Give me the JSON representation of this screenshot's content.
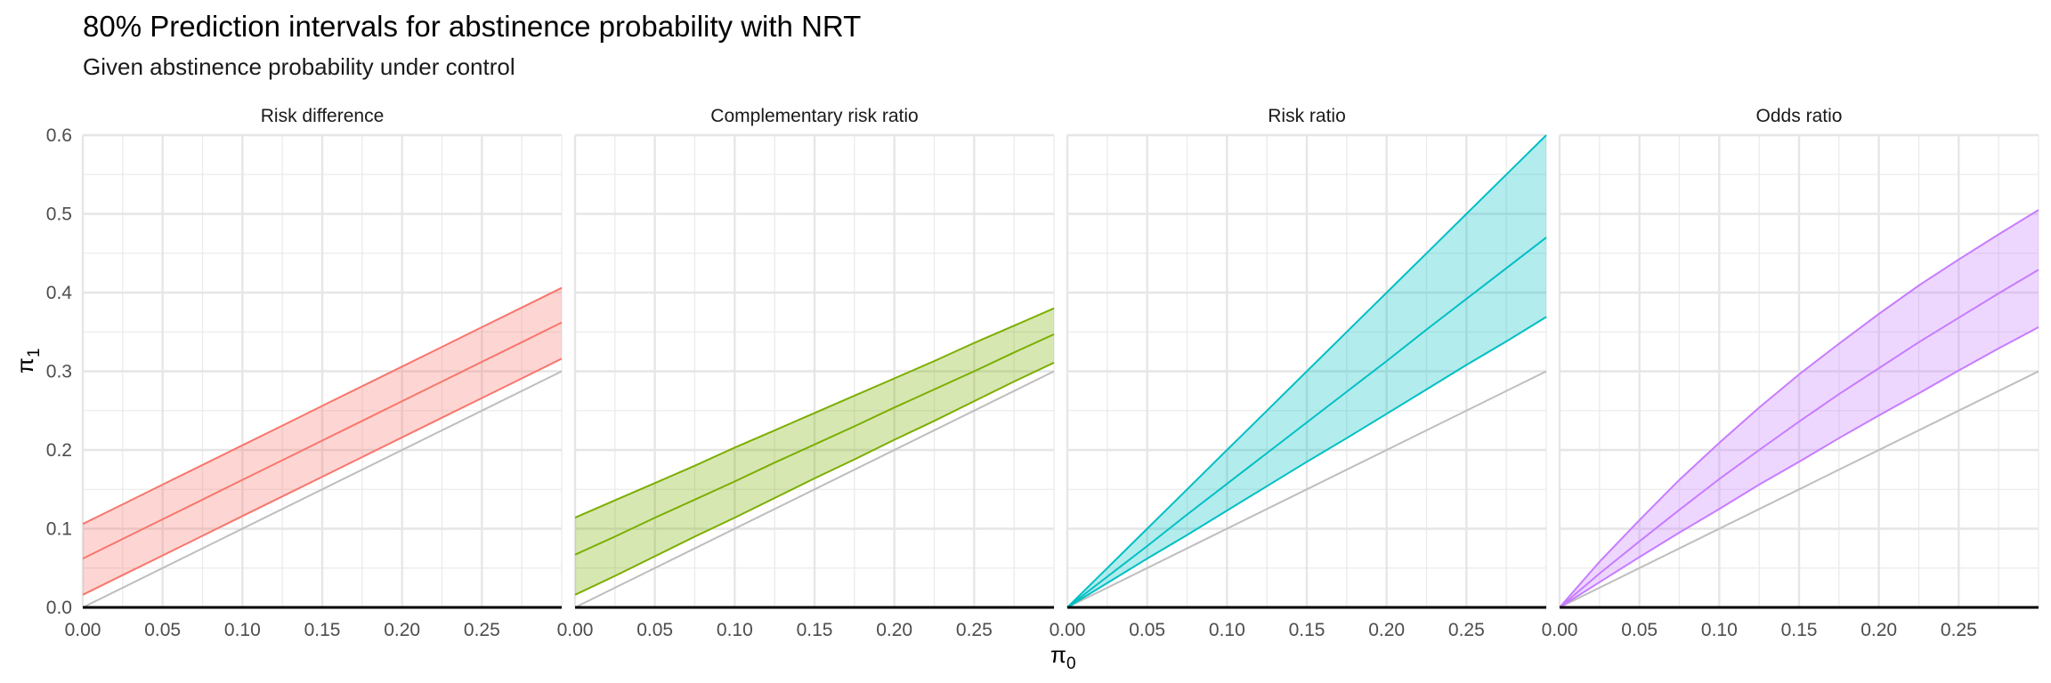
{
  "chart_data": {
    "type": "area",
    "title": "80% Prediction intervals for abstinence probability with NRT",
    "subtitle": "Given abstinence probability under control",
    "xlabel": "π",
    "xlabel_subscript": "0",
    "ylabel": "π",
    "ylabel_subscript": "1",
    "xlim": [
      0,
      0.3
    ],
    "ylim": [
      0,
      0.6
    ],
    "x_ticks": [
      "0.00",
      "0.05",
      "0.10",
      "0.15",
      "0.20",
      "0.25"
    ],
    "x_tick_values": [
      0,
      0.05,
      0.1,
      0.15,
      0.2,
      0.25
    ],
    "y_ticks": [
      "0.0",
      "0.1",
      "0.2",
      "0.3",
      "0.4",
      "0.5",
      "0.6"
    ],
    "y_tick_values": [
      0,
      0.1,
      0.2,
      0.3,
      0.4,
      0.5,
      0.6
    ],
    "grid": true,
    "reference_line": {
      "name": "identity (π1 = π0)",
      "color": "#bebebe"
    },
    "x": [
      0,
      0.025,
      0.05,
      0.075,
      0.1,
      0.125,
      0.15,
      0.175,
      0.2,
      0.225,
      0.25,
      0.275,
      0.3
    ],
    "panels": [
      {
        "label": "Risk difference",
        "color": "#f8766d",
        "fill": "#fdd0cd",
        "lower": [
          0.016,
          0.041,
          0.066,
          0.091,
          0.116,
          0.141,
          0.166,
          0.191,
          0.216,
          0.241,
          0.266,
          0.291,
          0.316
        ],
        "median": [
          0.062,
          0.087,
          0.112,
          0.137,
          0.162,
          0.187,
          0.212,
          0.237,
          0.262,
          0.287,
          0.312,
          0.337,
          0.362
        ],
        "upper": [
          0.106,
          0.131,
          0.156,
          0.181,
          0.206,
          0.231,
          0.256,
          0.281,
          0.306,
          0.331,
          0.356,
          0.381,
          0.406
        ]
      },
      {
        "label": "Complementary risk ratio",
        "color": "#7cae00",
        "fill": "#d7e7b3",
        "lower": [
          0.016,
          0.04,
          0.065,
          0.09,
          0.114,
          0.139,
          0.164,
          0.188,
          0.213,
          0.237,
          0.262,
          0.287,
          0.311
        ],
        "median": [
          0.067,
          0.09,
          0.114,
          0.137,
          0.16,
          0.184,
          0.207,
          0.23,
          0.254,
          0.277,
          0.3,
          0.324,
          0.347
        ],
        "upper": [
          0.114,
          0.136,
          0.158,
          0.18,
          0.203,
          0.225,
          0.247,
          0.269,
          0.291,
          0.313,
          0.336,
          0.358,
          0.38
        ]
      },
      {
        "label": "Risk ratio",
        "color": "#00bfc4",
        "fill": "#b2ebec",
        "lower": [
          0,
          0.031,
          0.062,
          0.092,
          0.123,
          0.154,
          0.185,
          0.215,
          0.246,
          0.277,
          0.308,
          0.338,
          0.369
        ],
        "median": [
          0,
          0.039,
          0.078,
          0.118,
          0.157,
          0.196,
          0.235,
          0.274,
          0.313,
          0.353,
          0.392,
          0.431,
          0.47
        ],
        "upper": [
          0,
          0.05,
          0.1,
          0.15,
          0.2,
          0.25,
          0.3,
          0.35,
          0.4,
          0.45,
          0.5,
          0.55,
          0.6
        ]
      },
      {
        "label": "Odds ratio",
        "color": "#c77cff",
        "fill": "#eed8ff",
        "lower": [
          0,
          0.032,
          0.064,
          0.095,
          0.125,
          0.156,
          0.185,
          0.215,
          0.244,
          0.272,
          0.301,
          0.329,
          0.356
        ],
        "median": [
          0,
          0.043,
          0.084,
          0.124,
          0.163,
          0.2,
          0.236,
          0.271,
          0.304,
          0.337,
          0.368,
          0.399,
          0.429
        ],
        "upper": [
          0,
          0.058,
          0.111,
          0.162,
          0.209,
          0.254,
          0.296,
          0.335,
          0.373,
          0.409,
          0.442,
          0.474,
          0.505
        ]
      }
    ]
  }
}
